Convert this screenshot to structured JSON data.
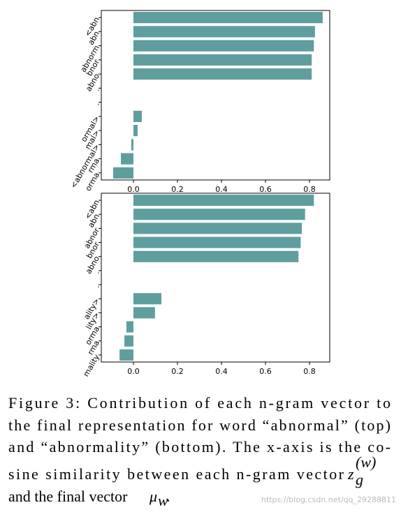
{
  "chart_data": [
    {
      "type": "barh",
      "color": "#5f9e9e",
      "categories": [
        "<abn",
        "abn",
        "abnorm",
        "bnor",
        "abno",
        ".",
        ".",
        "ormal>",
        "mal>",
        "<abnormal>",
        "rma",
        "orma"
      ],
      "values": [
        0.86,
        0.825,
        0.82,
        0.81,
        0.81,
        null,
        null,
        0.038,
        0.019,
        -0.01,
        -0.057,
        -0.092
      ],
      "xlim": [
        -0.146,
        0.892
      ],
      "xticks": [
        {
          "value": 0,
          "label": "0.0"
        },
        0.2,
        0.4,
        0.6,
        0.8
      ]
    },
    {
      "type": "barh",
      "color": "#5f9e9e",
      "categories": [
        "<abn",
        "abn",
        "abnor",
        "bnor",
        "abno",
        ".",
        ".",
        "ality>",
        "lity>",
        "orma",
        "rma",
        "mality"
      ],
      "values": [
        0.82,
        0.78,
        0.765,
        0.76,
        0.75,
        null,
        null,
        0.127,
        0.098,
        -0.032,
        -0.041,
        -0.063
      ],
      "xlim": [
        -0.146,
        0.892
      ],
      "xticks": [
        {
          "value": 0,
          "label": "0.0"
        },
        0.2,
        0.4,
        0.6,
        0.8
      ]
    }
  ],
  "caption": {
    "lines": [
      "Figure 3:  Contribution of each n-gram vector to",
      "the final representation for word “abnormal” (top)",
      "and “abnormality” (bottom). The x-axis is the co-",
      "sine similarity between each n-gram vector ",
      "and the final vector "
    ],
    "math": {
      "z": "z",
      "g": "g",
      "w_sup": "(w)",
      "mu": "μ",
      "mu_sub": "w",
      "end": "."
    }
  },
  "watermark": "https://blog.csdn.net/qq_29288811"
}
